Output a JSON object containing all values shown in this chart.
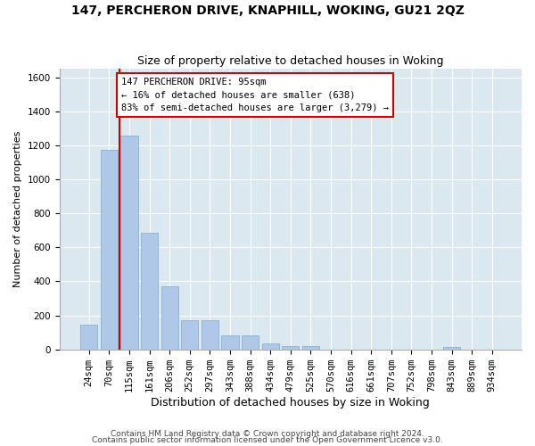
{
  "title1": "147, PERCHERON DRIVE, KNAPHILL, WOKING, GU21 2QZ",
  "title2": "Size of property relative to detached houses in Woking",
  "xlabel": "Distribution of detached houses by size in Woking",
  "ylabel": "Number of detached properties",
  "categories": [
    "24sqm",
    "70sqm",
    "115sqm",
    "161sqm",
    "206sqm",
    "252sqm",
    "297sqm",
    "343sqm",
    "388sqm",
    "434sqm",
    "479sqm",
    "525sqm",
    "570sqm",
    "616sqm",
    "661sqm",
    "707sqm",
    "752sqm",
    "798sqm",
    "843sqm",
    "889sqm",
    "934sqm"
  ],
  "values": [
    145,
    1175,
    1255,
    685,
    370,
    170,
    170,
    80,
    80,
    35,
    22,
    22,
    0,
    0,
    0,
    0,
    0,
    0,
    15,
    0,
    0
  ],
  "bar_color": "#b0c8e8",
  "bar_edgecolor": "#7aaad0",
  "vline_x": 1.5,
  "vline_color": "#cc0000",
  "annotation_text": "147 PERCHERON DRIVE: 95sqm\n← 16% of detached houses are smaller (638)\n83% of semi-detached houses are larger (3,279) →",
  "annotation_box_facecolor": "#ffffff",
  "annotation_box_edgecolor": "#cc0000",
  "ylim": [
    0,
    1650
  ],
  "yticks": [
    0,
    200,
    400,
    600,
    800,
    1000,
    1200,
    1400,
    1600
  ],
  "bg_color": "#dce8f0",
  "footer1": "Contains HM Land Registry data © Crown copyright and database right 2024.",
  "footer2": "Contains public sector information licensed under the Open Government Licence v3.0.",
  "fig_width": 6.0,
  "fig_height": 5.0,
  "title1_fontsize": 10,
  "title2_fontsize": 9,
  "xlabel_fontsize": 9,
  "ylabel_fontsize": 8,
  "tick_fontsize": 7.5,
  "annotation_fontsize": 7.5,
  "footer_fontsize": 6.5
}
